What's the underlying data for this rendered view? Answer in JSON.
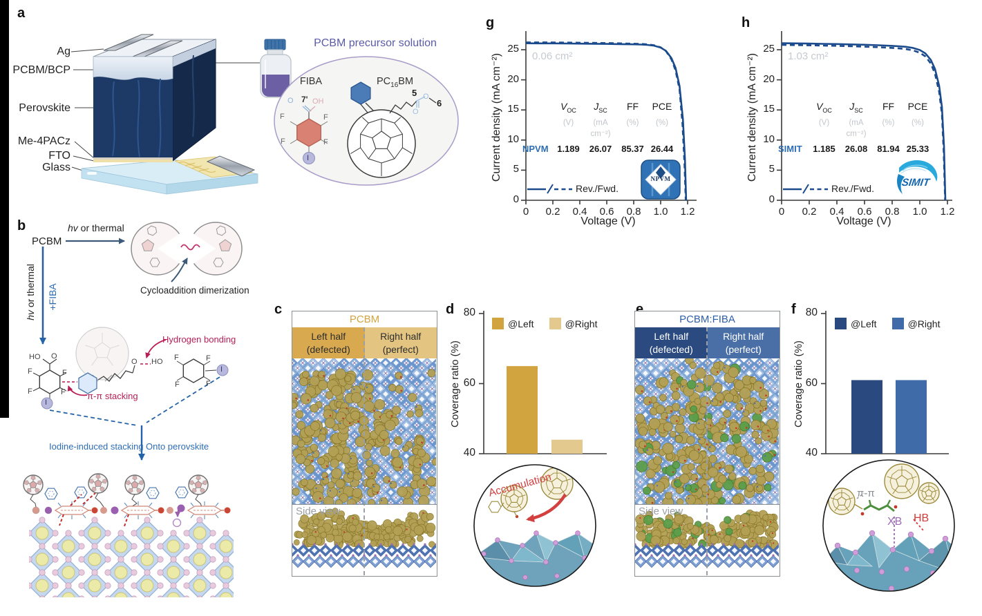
{
  "panels": {
    "a": "a",
    "b": "b",
    "c": "c",
    "d": "d",
    "e": "e",
    "f": "f",
    "g": "g",
    "h": "h"
  },
  "colors": {
    "curve_navy": "#1b4b8c",
    "gold_dark": "#d2a440",
    "gold_light": "#e3c98e",
    "blue_dark": "#2a4a7f",
    "blue_mid": "#3f6ba8",
    "crimson": "#b81e55",
    "label_blue": "#2e6db4",
    "muted_gray": "#c6cad0",
    "purple_title": "#5a5ba6",
    "c_title": "#d2a440",
    "c_left_bg": "#d8a94f",
    "c_right_bg": "#e3c480",
    "c_head_text": "#2e2e2e",
    "e_title": "#2f5ea8",
    "e_left_bg": "#2b4a80",
    "e_right_bg": "#4a6fa6",
    "e_head_text": "#ffffff"
  },
  "panel_a": {
    "layers": [
      "Ag",
      "PCBM/BCP",
      "Perovskite",
      "Me-4PACz",
      "FTO",
      "Glass"
    ],
    "solution_title": "PCBM precursor solution",
    "fiba_name": "FIBA",
    "pc16bm": {
      "p1": "PC",
      "sub": "16",
      "p2": "BM"
    },
    "atoms": {
      "O": "O",
      "OH": "OH",
      "c7": "7'",
      "F": "F",
      "I": "I"
    },
    "chain_labels": {
      "five": "5",
      "six": "6"
    }
  },
  "panel_b": {
    "pcbm": "PCBM",
    "hv_thermal": {
      "em": "hv",
      "rest": " or thermal"
    },
    "plus_fiba": "+FIBA",
    "cycloaddition": "Cycloaddition dimerization",
    "hydrogen_bonding": "Hydrogen bonding",
    "pi_stacking": "π-π stacking",
    "iodine_stacking": "Iodine-induced stacking",
    "onto_perovskite": "Onto perovskite",
    "atoms": {
      "HO": "HO",
      "O": "O",
      "F": "F",
      "I": "I"
    }
  },
  "panel_c": {
    "title": "PCBM",
    "left_line1": "Left half",
    "left_line2": "(defected)",
    "right_line1": "Right half",
    "right_line2": "(perfect)",
    "side_view": "Side view"
  },
  "panel_e": {
    "title": "PCBM:FIBA",
    "left_line1": "Left half",
    "left_line2": "(defected)",
    "right_line1": "Right half",
    "right_line2": "(perfect)",
    "side_view": "Side view"
  },
  "insets": {
    "d_label": "Accumulation",
    "f_pi": "π-π",
    "f_xb": "XB",
    "f_hb": "HB"
  },
  "panel_g_table": {
    "voc_sym": "V",
    "voc_sub": "OC",
    "jsc_sym": "J",
    "jsc_sub": "SC",
    "ff": "FF",
    "pce": "PCE",
    "u_v": "(V)",
    "u_j": "(mA cm⁻²)",
    "u_ff": "(%)",
    "u_pce": "(%)"
  },
  "logos": {
    "g": "NPVM",
    "h": "SIMIT"
  },
  "chart_data": [
    {
      "id": "d",
      "type": "bar",
      "categories": [
        "@Left",
        "@Right"
      ],
      "values": [
        65,
        44
      ],
      "legend": [
        "@Left",
        "@Right"
      ],
      "legend_position": "top",
      "ylabel": "Coverage ratio (%)",
      "ylim": [
        40,
        80
      ],
      "yticks": [
        40,
        60,
        80
      ],
      "bar_colors": [
        "#d2a440",
        "#e3c98e"
      ],
      "grid": false
    },
    {
      "id": "f",
      "type": "bar",
      "categories": [
        "@Left",
        "@Right"
      ],
      "values": [
        61,
        61
      ],
      "legend": [
        "@Left",
        "@Right"
      ],
      "legend_position": "top",
      "ylabel": "Coverage ratio (%)",
      "ylim": [
        40,
        80
      ],
      "yticks": [
        40,
        60,
        80
      ],
      "bar_colors": [
        "#2a4a7f",
        "#3f6ba8"
      ],
      "grid": false
    },
    {
      "id": "g",
      "type": "line",
      "xlabel": "Voltage (V)",
      "ylabel": "Current density (mA cm⁻²)",
      "xlim": [
        0,
        1.26
      ],
      "ylim": [
        0,
        27
      ],
      "xticks": [
        "0",
        "0.2",
        "0.4",
        "0.6",
        "0.8",
        "1.0",
        "1.2"
      ],
      "yticks": [
        0,
        5,
        10,
        15,
        20,
        25
      ],
      "annotation": "0.06 cm²",
      "legend_label": "Rev./Fwd.",
      "color": "#1b4b8c",
      "grid": false,
      "metrics": {
        "label": "NPVM",
        "Voc": "1.189",
        "Jsc": "26.07",
        "FF": "85.37",
        "PCE": "26.44"
      },
      "series": [
        {
          "name": "Rev.",
          "style": "solid",
          "x": [
            0,
            0.1,
            0.2,
            0.3,
            0.4,
            0.5,
            0.6,
            0.7,
            0.8,
            0.85,
            0.9,
            0.95,
            1.0,
            1.04,
            1.08,
            1.11,
            1.14,
            1.165,
            1.18,
            1.189
          ],
          "y": [
            26.07,
            26.06,
            26.05,
            26.03,
            26.01,
            25.99,
            25.96,
            25.93,
            25.89,
            25.86,
            25.8,
            25.68,
            25.35,
            24.8,
            23.6,
            22.0,
            19.0,
            13.5,
            7.0,
            0
          ]
        },
        {
          "name": "Fwd.",
          "style": "dashed",
          "x": [
            0,
            0.1,
            0.2,
            0.3,
            0.4,
            0.5,
            0.6,
            0.7,
            0.8,
            0.85,
            0.9,
            0.95,
            1.0,
            1.04,
            1.08,
            1.11,
            1.14,
            1.162,
            1.177,
            1.186
          ],
          "y": [
            26.22,
            26.21,
            26.2,
            26.18,
            26.16,
            26.13,
            26.1,
            26.06,
            26.0,
            25.96,
            25.89,
            25.75,
            25.4,
            24.75,
            23.4,
            21.6,
            18.4,
            12.6,
            6.0,
            0
          ]
        }
      ]
    },
    {
      "id": "h",
      "type": "line",
      "xlabel": "Voltage (V)",
      "ylabel": "Current density (mA cm⁻²)",
      "xlim": [
        0,
        1.26
      ],
      "ylim": [
        0,
        27
      ],
      "xticks": [
        "0",
        "0.2",
        "0.4",
        "0.6",
        "0.8",
        "1.0",
        "1.2"
      ],
      "yticks": [
        0,
        5,
        10,
        15,
        20,
        25
      ],
      "annotation": "1.03 cm²",
      "legend_label": "Rev./Fwd.",
      "color": "#1b4b8c",
      "grid": false,
      "metrics": {
        "label": "SIMIT",
        "Voc": "1.185",
        "Jsc": "26.08",
        "FF": "81.94",
        "PCE": "25.33"
      },
      "series": [
        {
          "name": "Rev.",
          "style": "solid",
          "x": [
            0,
            0.1,
            0.2,
            0.3,
            0.4,
            0.5,
            0.6,
            0.7,
            0.8,
            0.85,
            0.9,
            0.95,
            1.0,
            1.04,
            1.08,
            1.11,
            1.14,
            1.16,
            1.175,
            1.185
          ],
          "y": [
            26.08,
            26.05,
            26.02,
            25.98,
            25.94,
            25.88,
            25.82,
            25.74,
            25.64,
            25.57,
            25.48,
            25.3,
            24.95,
            24.4,
            23.3,
            21.8,
            19.0,
            15.5,
            9.0,
            0
          ]
        },
        {
          "name": "Fwd.",
          "style": "dashed",
          "x": [
            0,
            0.1,
            0.2,
            0.3,
            0.4,
            0.5,
            0.6,
            0.7,
            0.8,
            0.85,
            0.9,
            0.95,
            1.0,
            1.04,
            1.08,
            1.11,
            1.14,
            1.16,
            1.173,
            1.183
          ],
          "y": [
            25.8,
            25.77,
            25.73,
            25.69,
            25.64,
            25.58,
            25.5,
            25.41,
            25.3,
            25.22,
            25.1,
            24.9,
            24.5,
            23.9,
            22.7,
            21.0,
            18.0,
            14.3,
            8.0,
            0
          ]
        }
      ]
    }
  ]
}
